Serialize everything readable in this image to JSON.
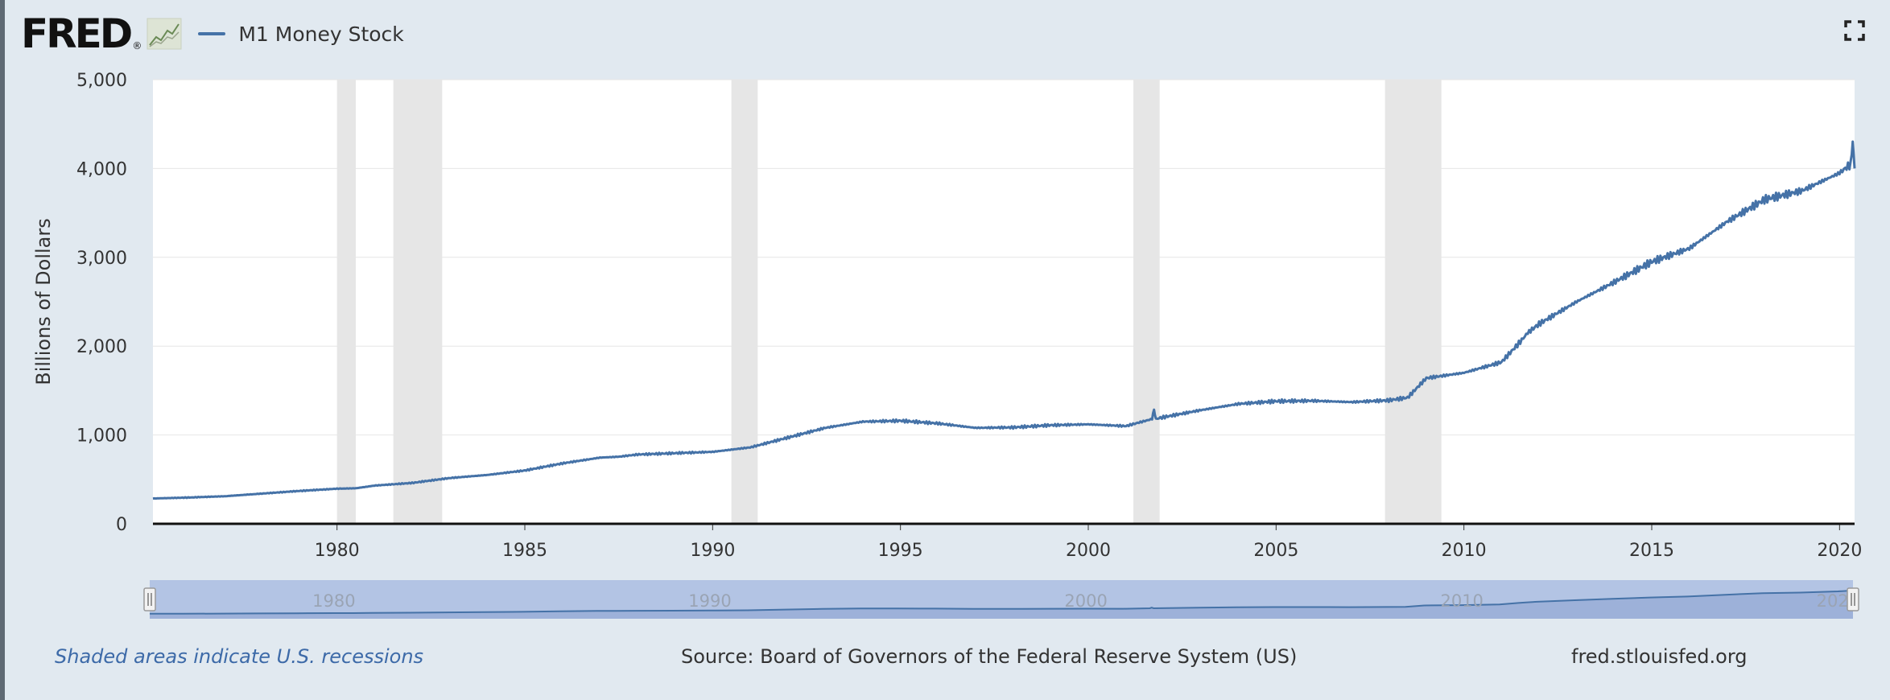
{
  "header": {
    "logo_text": "FRED",
    "logo_mark": "®",
    "legend_label": "M1 Money Stock"
  },
  "colors": {
    "series": "#4572a7",
    "recession": "#e6e6e6",
    "navigator_fill": "#b3c4e4",
    "background": "#e1e9f0"
  },
  "icons": {
    "logo_graph": "line-graph-icon",
    "fullscreen": "fullscreen-icon"
  },
  "footer": {
    "note": "Shaded areas indicate U.S. recessions",
    "source": "Source: Board of Governors of the Federal Reserve System (US)",
    "site": "fred.stlouisfed.org"
  },
  "chart_data": {
    "type": "line",
    "title": "",
    "xlabel": "",
    "ylabel": "Billions of Dollars",
    "xlim": [
      1975.1,
      2020.4
    ],
    "ylim": [
      0,
      5000
    ],
    "x_ticks": [
      "1980",
      "1985",
      "1990",
      "1995",
      "2000",
      "2005",
      "2010",
      "2015",
      "2020"
    ],
    "y_ticks": [
      "0",
      "1,000",
      "2,000",
      "3,000",
      "4,000",
      "5,000"
    ],
    "grid": true,
    "legend_position": "top-left",
    "recessions": [
      [
        1980.0,
        1980.5
      ],
      [
        1981.5,
        1982.8
      ],
      [
        1990.5,
        1991.2
      ],
      [
        2001.2,
        2001.9
      ],
      [
        2007.9,
        2009.4
      ]
    ],
    "navigator_ticks": [
      "1980",
      "1990",
      "2000",
      "2010",
      "2020"
    ],
    "series": [
      {
        "name": "M1 Money Stock",
        "x": [
          1975.1,
          1976,
          1977,
          1978,
          1979,
          1980,
          1980.5,
          1981,
          1982,
          1983,
          1984,
          1985,
          1986,
          1987,
          1987.5,
          1988,
          1989,
          1990,
          1991,
          1992,
          1993,
          1994,
          1995,
          1996,
          1997,
          1998,
          1999,
          2000,
          2001,
          2001.7,
          2001.75,
          2001.8,
          2002,
          2003,
          2004,
          2005,
          2006,
          2007,
          2008,
          2008.5,
          2009,
          2010,
          2011,
          2011.5,
          2011.7,
          2012,
          2013,
          2014,
          2015,
          2016,
          2017,
          2018,
          2019,
          2020,
          2020.3,
          2020.35,
          2020.4
        ],
        "y": [
          285,
          295,
          310,
          340,
          370,
          395,
          400,
          430,
          460,
          515,
          550,
          600,
          680,
          745,
          755,
          780,
          795,
          810,
          860,
          970,
          1080,
          1150,
          1160,
          1130,
          1080,
          1085,
          1110,
          1120,
          1100,
          1180,
          1290,
          1180,
          1200,
          1280,
          1350,
          1380,
          1385,
          1370,
          1390,
          1420,
          1640,
          1700,
          1820,
          2050,
          2150,
          2250,
          2500,
          2720,
          2950,
          3100,
          3400,
          3650,
          3750,
          3950,
          4050,
          4300,
          4000
        ]
      }
    ]
  }
}
